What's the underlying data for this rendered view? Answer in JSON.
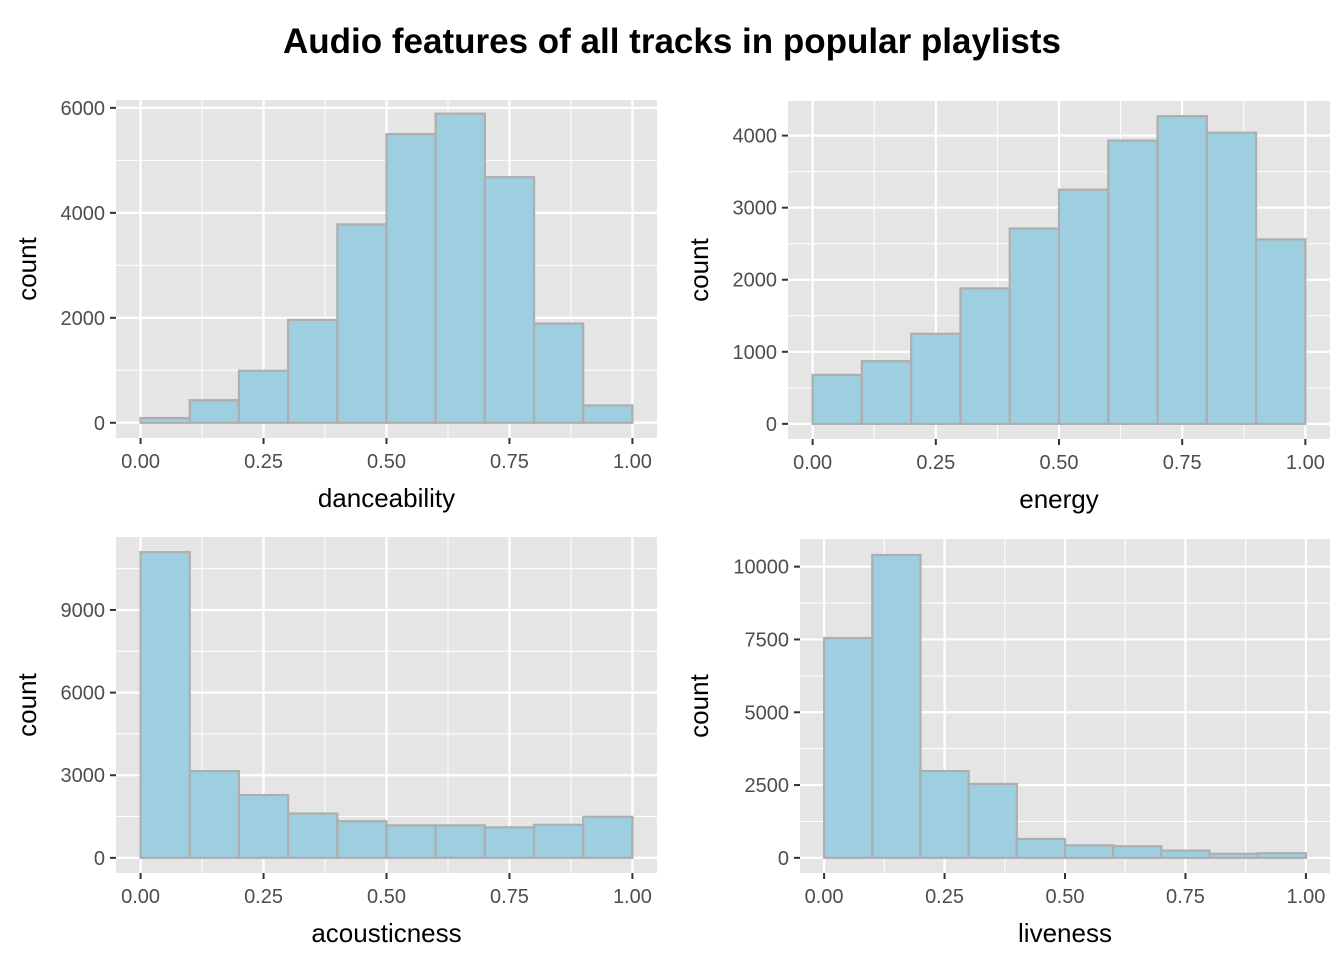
{
  "title": "Audio features of all tracks in popular playlists",
  "colors": {
    "panel_bg": "#e5e5e5",
    "grid": "#ffffff",
    "bar_fill": "#9ecfe0",
    "bar_stroke": "#aeaeae",
    "tick_text": "#4d4d4d"
  },
  "chart_data": [
    {
      "type": "bar",
      "xlabel": "danceability",
      "ylabel": "count",
      "bin_edges": [
        0.0,
        0.1,
        0.2,
        0.3,
        0.4,
        0.5,
        0.6,
        0.7,
        0.8,
        0.9,
        1.0
      ],
      "values": [
        90,
        430,
        990,
        1960,
        3780,
        5500,
        5890,
        4680,
        1890,
        330
      ],
      "xlim": [
        -0.05,
        1.05
      ],
      "ylim": [
        -290,
        6150
      ],
      "x_ticks": [
        0,
        0.25,
        0.5,
        0.75,
        1.0
      ],
      "x_tick_labels": [
        "0.00",
        "0.25",
        "0.50",
        "0.75",
        "1.00"
      ],
      "y_ticks": [
        0,
        2000,
        4000,
        6000
      ],
      "y_tick_labels": [
        "0",
        "2000",
        "4000",
        "6000"
      ],
      "grid": true
    },
    {
      "type": "bar",
      "xlabel": "energy",
      "ylabel": "count",
      "bin_edges": [
        0.0,
        0.1,
        0.2,
        0.3,
        0.4,
        0.5,
        0.6,
        0.7,
        0.8,
        0.9,
        1.0
      ],
      "values": [
        680,
        870,
        1250,
        1880,
        2710,
        3250,
        3930,
        4270,
        4040,
        2560
      ],
      "xlim": [
        -0.05,
        1.05
      ],
      "ylim": [
        -210,
        4480
      ],
      "x_ticks": [
        0,
        0.25,
        0.5,
        0.75,
        1.0
      ],
      "x_tick_labels": [
        "0.00",
        "0.25",
        "0.50",
        "0.75",
        "1.00"
      ],
      "y_ticks": [
        0,
        1000,
        2000,
        3000,
        4000
      ],
      "y_tick_labels": [
        "0",
        "1000",
        "2000",
        "3000",
        "4000"
      ],
      "grid": true
    },
    {
      "type": "bar",
      "xlabel": "acousticness",
      "ylabel": "count",
      "bin_edges": [
        0.0,
        0.1,
        0.2,
        0.3,
        0.4,
        0.5,
        0.6,
        0.7,
        0.8,
        0.9,
        1.0
      ],
      "values": [
        11100,
        3150,
        2280,
        1610,
        1330,
        1180,
        1180,
        1110,
        1200,
        1490
      ],
      "xlim": [
        -0.05,
        1.05
      ],
      "ylim": [
        -550,
        11650
      ],
      "x_ticks": [
        0,
        0.25,
        0.5,
        0.75,
        1.0
      ],
      "x_tick_labels": [
        "0.00",
        "0.25",
        "0.50",
        "0.75",
        "1.00"
      ],
      "y_ticks": [
        0,
        3000,
        6000,
        9000
      ],
      "y_tick_labels": [
        "0",
        "3000",
        "6000",
        "9000"
      ],
      "grid": true
    },
    {
      "type": "bar",
      "xlabel": "liveness",
      "ylabel": "count",
      "bin_edges": [
        0.0,
        0.1,
        0.2,
        0.3,
        0.4,
        0.5,
        0.6,
        0.7,
        0.8,
        0.9,
        1.0
      ],
      "values": [
        7550,
        10400,
        2980,
        2540,
        650,
        430,
        400,
        250,
        140,
        160
      ],
      "xlim": [
        -0.05,
        1.05
      ],
      "ylim": [
        -520,
        10950
      ],
      "x_ticks": [
        0,
        0.25,
        0.5,
        0.75,
        1.0
      ],
      "x_tick_labels": [
        "0.00",
        "0.25",
        "0.50",
        "0.75",
        "1.00"
      ],
      "y_ticks": [
        0,
        2500,
        5000,
        7500,
        10000
      ],
      "y_tick_labels": [
        "0",
        "2500",
        "5000",
        "7500",
        "10000"
      ],
      "grid": true
    }
  ]
}
